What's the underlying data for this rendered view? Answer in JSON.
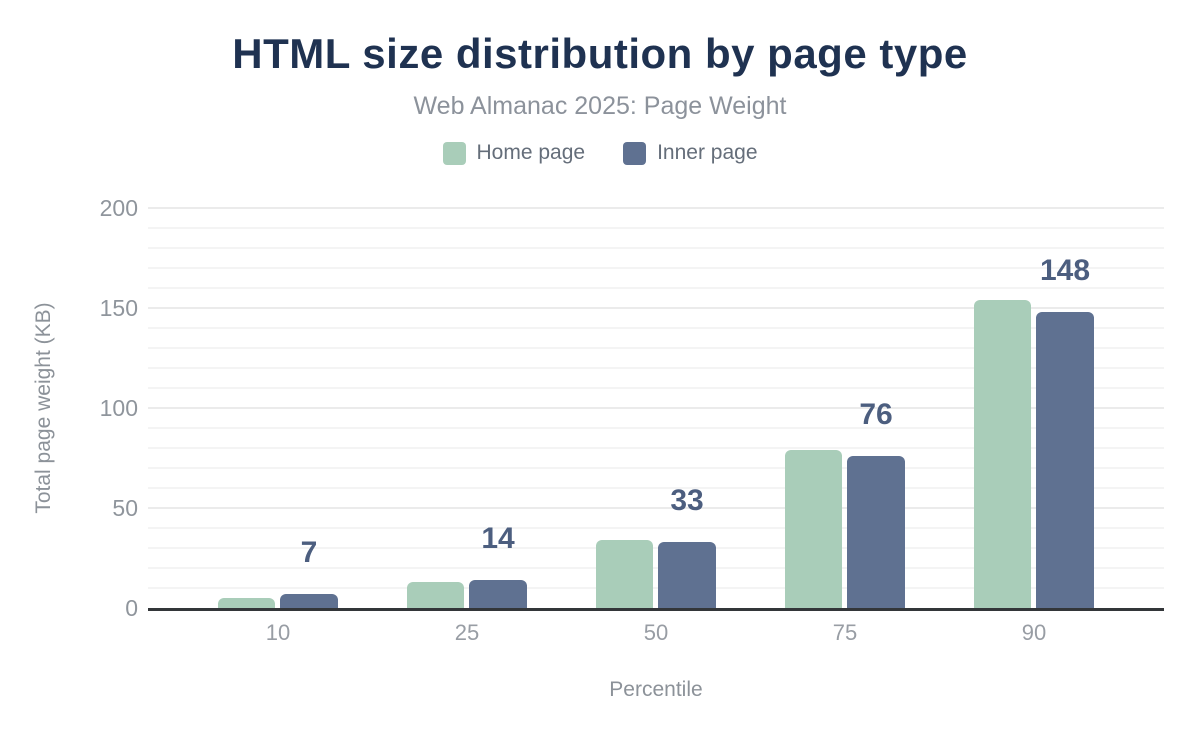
{
  "chart_data": {
    "type": "bar",
    "title": "HTML size distribution by page type",
    "subtitle": "Web Almanac 2025: Page Weight",
    "categories": [
      "10",
      "25",
      "50",
      "75",
      "90"
    ],
    "series": [
      {
        "name": "Home page",
        "color": "#a9cdb9",
        "values": [
          5,
          13,
          34,
          79,
          154
        ],
        "data_labels_shown": false
      },
      {
        "name": "Inner page",
        "color": "#5f7191",
        "values": [
          7,
          14,
          33,
          76,
          148
        ],
        "data_labels_shown": true
      }
    ],
    "data_labels": [
      "7",
      "14",
      "33",
      "76",
      "148"
    ],
    "xlabel": "Percentile",
    "ylabel": "Total page weight (KB)",
    "ylim": [
      0,
      200
    ],
    "yticks": [
      0,
      50,
      100,
      150,
      200
    ],
    "minor_grid_step": 10,
    "major_grid_step": 50,
    "grid": "horizontal",
    "legend_position": "top"
  },
  "colors": {
    "title": "#1f3251",
    "subtitle": "#8c929b",
    "legend_text": "#656e7a",
    "tick_label": "#93999f",
    "axis_line": "#333639",
    "data_label": "#4c5e7f",
    "grid_major": "#ebebeb",
    "grid_minor": "#f4f4f4",
    "home_page_bar": "#a9cdb9",
    "inner_page_bar": "#5f7191",
    "background": "#ffffff"
  }
}
